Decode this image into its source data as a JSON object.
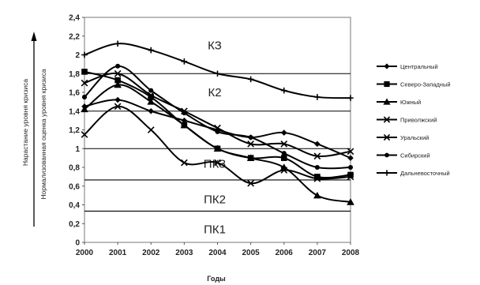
{
  "chart_data": {
    "type": "line",
    "x": [
      2000,
      2001,
      2002,
      2003,
      2004,
      2005,
      2006,
      2007,
      2008
    ],
    "xlabel": "Годы",
    "ylabel": "Нормализованная оценка уровня кризиса",
    "ylabel_outer": "Нарастание уровня кризиса",
    "ylim": [
      0,
      2.4
    ],
    "yticks": [
      "0",
      "0,2",
      "0,4",
      "0,6",
      "0,8",
      "1",
      "1,2",
      "1,4",
      "1,6",
      "1,8",
      "2",
      "2,2",
      "2,4"
    ],
    "grid": false,
    "legend_position": "right",
    "zone_lines": [
      0.333,
      0.666,
      1.0,
      1.4,
      1.8
    ],
    "zones": [
      {
        "label": "КЗ",
        "y": 2.1
      },
      {
        "label": "К2",
        "y": 1.6
      },
      {
        "label": "ПКЗ",
        "y": 0.84
      },
      {
        "label": "ПК2",
        "y": 0.46
      },
      {
        "label": "ПК1",
        "y": 0.14
      }
    ],
    "series": [
      {
        "name": "Центральный",
        "marker": "diamond",
        "values": [
          1.45,
          1.52,
          1.4,
          1.3,
          1.2,
          1.12,
          1.17,
          1.05,
          0.9
        ]
      },
      {
        "name": "Северо-Западный",
        "marker": "square",
        "values": [
          1.82,
          1.73,
          1.55,
          1.25,
          1.0,
          0.9,
          0.9,
          0.7,
          0.72
        ]
      },
      {
        "name": "Южный",
        "marker": "triangle",
        "values": [
          1.42,
          1.68,
          1.5,
          1.25,
          1.0,
          0.9,
          0.8,
          0.5,
          0.43
        ]
      },
      {
        "name": "Приволжский",
        "marker": "x",
        "values": [
          1.7,
          1.8,
          1.57,
          1.4,
          1.22,
          1.05,
          1.05,
          0.92,
          0.97
        ]
      },
      {
        "name": "Уральский",
        "marker": "x",
        "values": [
          1.15,
          1.45,
          1.2,
          0.85,
          0.85,
          0.63,
          0.77,
          0.68,
          0.7
        ]
      },
      {
        "name": "Сибирский",
        "marker": "dot",
        "values": [
          1.55,
          1.88,
          1.62,
          1.38,
          1.18,
          1.12,
          0.95,
          0.8,
          0.8
        ]
      },
      {
        "name": "Дальневосточный",
        "marker": "plus",
        "values": [
          2.0,
          2.12,
          2.05,
          1.93,
          1.8,
          1.74,
          1.62,
          1.55,
          1.54
        ]
      }
    ]
  }
}
